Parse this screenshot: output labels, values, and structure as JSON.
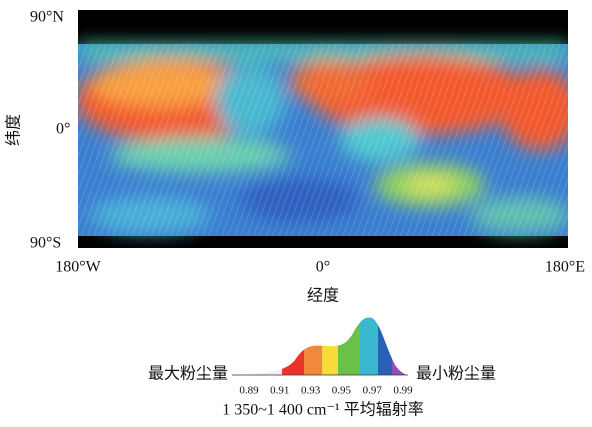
{
  "map": {
    "y_labels": [
      "90°N",
      "0°",
      "90°S"
    ],
    "x_labels": [
      "180°W",
      "0°",
      "180°E"
    ],
    "y_title": "纬度",
    "x_title": "经度"
  },
  "legend": {
    "left_label": "最大粉尘量",
    "right_label": "最小粉尘量",
    "ticks": [
      "0.89",
      "0.91",
      "0.93",
      "0.95",
      "0.97",
      "0.99"
    ],
    "caption": "1 350~1 400 cm⁻¹ 平均辐射率"
  }
}
